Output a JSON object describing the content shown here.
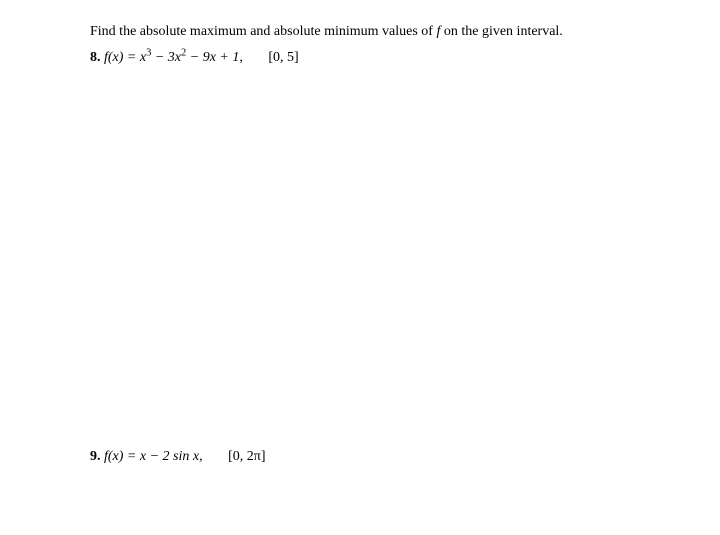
{
  "instruction": {
    "prefix": "Find the absolute maximum and absolute minimum values of ",
    "fvar": "f",
    "suffix": " on the given interval."
  },
  "problems": {
    "p8": {
      "num": "8.",
      "formula": "f(x) = x³ − 3x² − 9x + 1,",
      "interval": "[0, 5]"
    },
    "p9": {
      "num": "9.",
      "formula": "f(x) = x − 2 sin x,",
      "interval": "[0, 2π]"
    }
  }
}
